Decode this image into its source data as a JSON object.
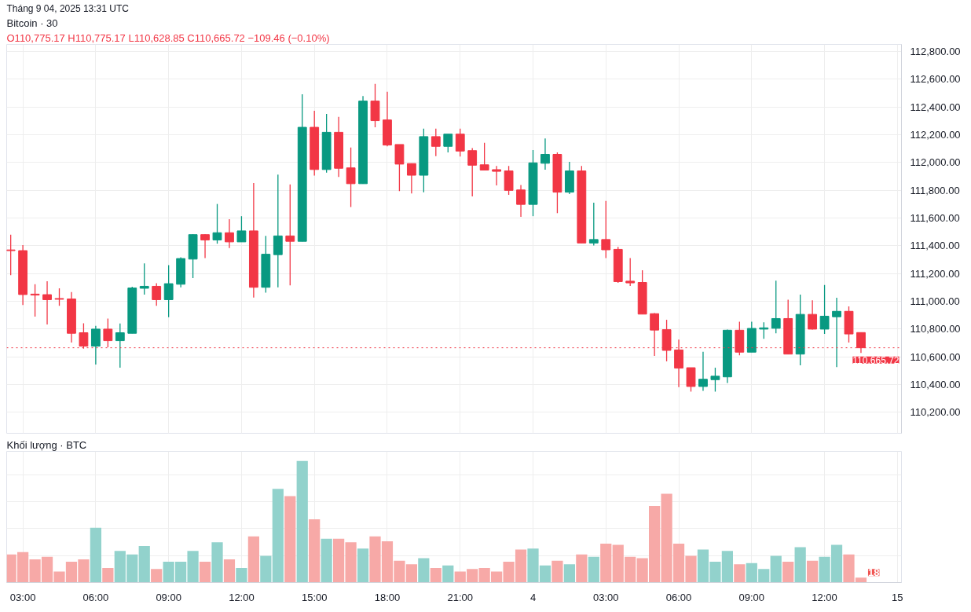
{
  "chart_data": [
    {
      "type": "candlestick",
      "title": "Bitcoin · 30",
      "subtitle": "O110,775.17 H110,775.17 L110,628.85 C110,665.72 −109.46 (−0.10%)",
      "annotations": [
        "Tháng 9 04, 2025 13:31 UTC"
      ],
      "x": [
        "2025-09-03T02:30",
        "2025-09-03T03:00",
        "2025-09-03T03:30",
        "2025-09-03T04:00",
        "2025-09-03T04:30",
        "2025-09-03T05:00",
        "2025-09-03T05:30",
        "2025-09-03T06:00",
        "2025-09-03T06:30",
        "2025-09-03T07:00",
        "2025-09-03T07:30",
        "2025-09-03T08:00",
        "2025-09-03T08:30",
        "2025-09-03T09:00",
        "2025-09-03T09:30",
        "2025-09-03T10:00",
        "2025-09-03T10:30",
        "2025-09-03T11:00",
        "2025-09-03T11:30",
        "2025-09-03T12:00",
        "2025-09-03T12:30",
        "2025-09-03T13:00",
        "2025-09-03T13:30",
        "2025-09-03T14:00",
        "2025-09-03T14:30",
        "2025-09-03T15:00",
        "2025-09-03T15:30",
        "2025-09-03T16:00",
        "2025-09-03T16:30",
        "2025-09-03T17:00",
        "2025-09-03T17:30",
        "2025-09-03T18:00",
        "2025-09-03T18:30",
        "2025-09-03T19:00",
        "2025-09-03T19:30",
        "2025-09-03T20:00",
        "2025-09-03T20:30",
        "2025-09-03T21:00",
        "2025-09-03T21:30",
        "2025-09-03T22:00",
        "2025-09-03T22:30",
        "2025-09-03T23:00",
        "2025-09-03T23:30",
        "2025-09-04T00:00",
        "2025-09-04T00:30",
        "2025-09-04T01:00",
        "2025-09-04T01:30",
        "2025-09-04T02:00",
        "2025-09-04T02:30",
        "2025-09-04T03:00",
        "2025-09-04T03:30",
        "2025-09-04T04:00",
        "2025-09-04T04:30",
        "2025-09-04T05:00",
        "2025-09-04T05:30",
        "2025-09-04T06:00",
        "2025-09-04T06:30",
        "2025-09-04T07:00",
        "2025-09-04T07:30",
        "2025-09-04T08:00",
        "2025-09-04T08:30",
        "2025-09-04T09:00",
        "2025-09-04T09:30",
        "2025-09-04T10:00",
        "2025-09-04T10:30",
        "2025-09-04T11:00",
        "2025-09-04T11:30",
        "2025-09-04T12:00",
        "2025-09-04T12:30",
        "2025-09-04T13:00",
        "2025-09-04T13:30"
      ],
      "ohlc": [
        [
          111370,
          111480,
          111189,
          111365
        ],
        [
          111365,
          111405,
          110973,
          111049
        ],
        [
          111052,
          111123,
          110890,
          111045
        ],
        [
          111048,
          111145,
          110833,
          111012
        ],
        [
          111020,
          111094,
          110968,
          111015
        ],
        [
          111017,
          111067,
          110703,
          110770
        ],
        [
          110774,
          110842,
          110659,
          110677
        ],
        [
          110677,
          110824,
          110545,
          110800
        ],
        [
          110800,
          110876,
          110670,
          110717
        ],
        [
          110717,
          110840,
          110522,
          110774
        ],
        [
          110770,
          111105,
          110770,
          111096
        ],
        [
          111094,
          111273,
          111049,
          111108
        ],
        [
          111108,
          111131,
          110968,
          111012
        ],
        [
          111012,
          111260,
          110886,
          111127
        ],
        [
          111123,
          111317,
          111101,
          111308
        ],
        [
          111304,
          111483,
          111167,
          111480
        ],
        [
          111480,
          111483,
          111312,
          111442
        ],
        [
          111442,
          111701,
          111415,
          111494
        ],
        [
          111494,
          111591,
          111383,
          111428
        ],
        [
          111428,
          111613,
          111428,
          111507
        ],
        [
          111507,
          111851,
          111027,
          111101
        ],
        [
          111101,
          111471,
          111062,
          111339
        ],
        [
          111336,
          111913,
          111101,
          111471
        ],
        [
          111471,
          111842,
          111115,
          111432
        ],
        [
          111432,
          112491,
          111432,
          112253
        ],
        [
          112253,
          112372,
          111905,
          111949
        ],
        [
          111949,
          112350,
          111927,
          112217
        ],
        [
          112217,
          112328,
          111895,
          111958
        ],
        [
          111961,
          112107,
          111679,
          111847
        ],
        [
          111847,
          112478,
          111847,
          112442
        ],
        [
          112442,
          112566,
          112253,
          112301
        ],
        [
          112306,
          112509,
          112116,
          112125
        ],
        [
          112129,
          112129,
          111794,
          111988
        ],
        [
          111992,
          111992,
          111776,
          111908
        ],
        [
          111908,
          112244,
          111785,
          112186
        ],
        [
          112186,
          112244,
          112045,
          112116
        ],
        [
          112116,
          112204,
          112072,
          112204
        ],
        [
          112204,
          112244,
          112042,
          112082
        ],
        [
          112085,
          112103,
          111755,
          111980
        ],
        [
          111983,
          112142,
          111945,
          111945
        ],
        [
          111948,
          111975,
          111835,
          111936
        ],
        [
          111939,
          111975,
          111767,
          111799
        ],
        [
          111802,
          111838,
          111608,
          111698
        ],
        [
          111698,
          112089,
          111613,
          111997
        ],
        [
          111994,
          112173,
          111948,
          112058
        ],
        [
          112058,
          112072,
          111635,
          111786
        ],
        [
          111786,
          112005,
          111773,
          111939
        ],
        [
          111939,
          111975,
          111420,
          111420
        ],
        [
          111420,
          111710,
          111402,
          111445
        ],
        [
          111445,
          111723,
          111312,
          111371
        ],
        [
          111374,
          111392,
          111133,
          111142
        ],
        [
          111145,
          111312,
          111111,
          111133
        ],
        [
          111136,
          111224,
          110908,
          110908
        ],
        [
          110911,
          110915,
          110607,
          110793
        ],
        [
          110796,
          110867,
          110568,
          110647
        ],
        [
          110650,
          110725,
          110383,
          110519
        ],
        [
          110522,
          110522,
          110350,
          110387
        ],
        [
          110387,
          110637,
          110355,
          110439
        ],
        [
          110436,
          110522,
          110350,
          110461
        ],
        [
          110456,
          110796,
          110412,
          110792
        ],
        [
          110792,
          110853,
          110611,
          110634
        ],
        [
          110634,
          110853,
          110634,
          110805
        ],
        [
          110800,
          110849,
          110730,
          110809
        ],
        [
          110806,
          111149,
          110770,
          110876
        ],
        [
          110876,
          111012,
          110620,
          110620
        ],
        [
          110620,
          111048,
          110540,
          110906
        ],
        [
          110906,
          111008,
          110796,
          110800
        ],
        [
          110800,
          111118,
          110765,
          110893
        ],
        [
          110889,
          111026,
          110527,
          110928
        ],
        [
          110928,
          110964,
          110703,
          110765
        ],
        [
          110775.17,
          110775.17,
          110628.85,
          110665.72
        ]
      ],
      "colors": [
        "#f23645",
        "#f23645",
        "#f23645",
        "#f23645",
        "#f23645",
        "#f23645",
        "#f23645",
        "#089981",
        "#f23645",
        "#089981",
        "#089981",
        "#089981",
        "#f23645",
        "#089981",
        "#089981",
        "#089981",
        "#f23645",
        "#089981",
        "#f23645",
        "#089981",
        "#f23645",
        "#089981",
        "#089981",
        "#f23645",
        "#089981",
        "#f23645",
        "#089981",
        "#f23645",
        "#f23645",
        "#089981",
        "#f23645",
        "#f23645",
        "#f23645",
        "#f23645",
        "#089981",
        "#f23645",
        "#089981",
        "#f23645",
        "#f23645",
        "#f23645",
        "#f23645",
        "#f23645",
        "#f23645",
        "#089981",
        "#089981",
        "#f23645",
        "#089981",
        "#f23645",
        "#089981",
        "#f23645",
        "#f23645",
        "#f23645",
        "#f23645",
        "#f23645",
        "#f23645",
        "#f23645",
        "#f23645",
        "#089981",
        "#089981",
        "#089981",
        "#f23645",
        "#089981",
        "#089981",
        "#089981",
        "#f23645",
        "#089981",
        "#f23645",
        "#089981",
        "#089981",
        "#f23645",
        "#f23645"
      ],
      "xlim": [
        "2025-09-03T02:20",
        "2025-09-04T15:10"
      ],
      "ylim": [
        110050,
        112850
      ],
      "xticks": [
        {
          "value": "2025-09-03T03:00",
          "label": null
        },
        {
          "value": "2025-09-03T06:00",
          "label": null
        },
        {
          "value": "2025-09-03T09:00",
          "label": null
        },
        {
          "value": "2025-09-03T12:00",
          "label": null
        },
        {
          "value": "2025-09-03T15:00",
          "label": null
        },
        {
          "value": "2025-09-03T18:00",
          "label": null
        },
        {
          "value": "2025-09-03T21:00",
          "label": null
        },
        {
          "value": "2025-09-04T00:00",
          "label": null
        },
        {
          "value": "2025-09-04T03:00",
          "label": null
        },
        {
          "value": "2025-09-04T06:00",
          "label": null
        },
        {
          "value": "2025-09-04T09:00",
          "label": null
        },
        {
          "value": "2025-09-04T12:00",
          "label": null
        },
        {
          "value": "2025-09-04T15:00",
          "label": null
        }
      ],
      "yticks": [
        {
          "value": 110200,
          "label": "110,200.00"
        },
        {
          "value": 110400,
          "label": "110,400.00"
        },
        {
          "value": 110600,
          "label": "110,600.00"
        },
        {
          "value": 110800,
          "label": "110,800.00"
        },
        {
          "value": 111000,
          "label": "111,000.00"
        },
        {
          "value": 111200,
          "label": "111,200.00"
        },
        {
          "value": 111400,
          "label": "111,400.00"
        },
        {
          "value": 111600,
          "label": "111,600.00"
        },
        {
          "value": 111800,
          "label": "111,800.00"
        },
        {
          "value": 112000,
          "label": "112,000.00"
        },
        {
          "value": 112200,
          "label": "112,200.00"
        },
        {
          "value": 112400,
          "label": "112,400.00"
        },
        {
          "value": 112600,
          "label": "112,600.00"
        },
        {
          "value": 112800,
          "label": "112,800.00"
        }
      ],
      "ref_lines": [
        {
          "axis": "y",
          "value": 110665.72,
          "label": "110,665.72",
          "color": "#f23645",
          "line_style": "dotted"
        }
      ],
      "grid": true,
      "tick_labels": "y"
    },
    {
      "type": "bar",
      "subtitle": "Khối lượng · BTC",
      "x": [
        "2025-09-03T02:30",
        "2025-09-03T03:00",
        "2025-09-03T03:30",
        "2025-09-03T04:00",
        "2025-09-03T04:30",
        "2025-09-03T05:00",
        "2025-09-03T05:30",
        "2025-09-03T06:00",
        "2025-09-03T06:30",
        "2025-09-03T07:00",
        "2025-09-03T07:30",
        "2025-09-03T08:00",
        "2025-09-03T08:30",
        "2025-09-03T09:00",
        "2025-09-03T09:30",
        "2025-09-03T10:00",
        "2025-09-03T10:30",
        "2025-09-03T11:00",
        "2025-09-03T11:30",
        "2025-09-03T12:00",
        "2025-09-03T12:30",
        "2025-09-03T13:00",
        "2025-09-03T13:30",
        "2025-09-03T14:00",
        "2025-09-03T14:30",
        "2025-09-03T15:00",
        "2025-09-03T15:30",
        "2025-09-03T16:00",
        "2025-09-03T16:30",
        "2025-09-03T17:00",
        "2025-09-03T17:30",
        "2025-09-03T18:00",
        "2025-09-03T18:30",
        "2025-09-03T19:00",
        "2025-09-03T19:30",
        "2025-09-03T20:00",
        "2025-09-03T20:30",
        "2025-09-03T21:00",
        "2025-09-03T21:30",
        "2025-09-03T22:00",
        "2025-09-03T22:30",
        "2025-09-03T23:00",
        "2025-09-03T23:30",
        "2025-09-04T00:00",
        "2025-09-04T00:30",
        "2025-09-04T01:00",
        "2025-09-04T01:30",
        "2025-09-04T02:00",
        "2025-09-04T02:30",
        "2025-09-04T03:00",
        "2025-09-04T03:30",
        "2025-09-04T04:00",
        "2025-09-04T04:30",
        "2025-09-04T05:00",
        "2025-09-04T05:30",
        "2025-09-04T06:00",
        "2025-09-04T06:30",
        "2025-09-04T07:00",
        "2025-09-04T07:30",
        "2025-09-04T08:00",
        "2025-09-04T08:30",
        "2025-09-04T09:00",
        "2025-09-04T09:30",
        "2025-09-04T10:00",
        "2025-09-04T10:30",
        "2025-09-04T11:00",
        "2025-09-04T11:30",
        "2025-09-04T12:00",
        "2025-09-04T12:30",
        "2025-09-04T13:00",
        "2025-09-04T13:30"
      ],
      "values": [
        104,
        113,
        86,
        95,
        41,
        77,
        86,
        203,
        54,
        117,
        104,
        135,
        50,
        77,
        77,
        117,
        77,
        149,
        86,
        54,
        171,
        99,
        347,
        320,
        450,
        234,
        162,
        162,
        149,
        126,
        171,
        153,
        81,
        68,
        90,
        54,
        63,
        41,
        50,
        54,
        41,
        77,
        122,
        126,
        63,
        81,
        68,
        104,
        95,
        144,
        140,
        95,
        90,
        284,
        329,
        144,
        99,
        122,
        77,
        117,
        68,
        72,
        50,
        99,
        77,
        131,
        81,
        95,
        140,
        104,
        18
      ],
      "colors": [
        "#f7a9a7",
        "#f7a9a7",
        "#f7a9a7",
        "#f7a9a7",
        "#f7a9a7",
        "#f7a9a7",
        "#f7a9a7",
        "#92d2cc",
        "#f7a9a7",
        "#92d2cc",
        "#92d2cc",
        "#92d2cc",
        "#f7a9a7",
        "#92d2cc",
        "#92d2cc",
        "#92d2cc",
        "#f7a9a7",
        "#92d2cc",
        "#f7a9a7",
        "#92d2cc",
        "#f7a9a7",
        "#92d2cc",
        "#92d2cc",
        "#f7a9a7",
        "#92d2cc",
        "#f7a9a7",
        "#92d2cc",
        "#f7a9a7",
        "#f7a9a7",
        "#92d2cc",
        "#f7a9a7",
        "#f7a9a7",
        "#f7a9a7",
        "#f7a9a7",
        "#92d2cc",
        "#f7a9a7",
        "#92d2cc",
        "#f7a9a7",
        "#f7a9a7",
        "#f7a9a7",
        "#f7a9a7",
        "#f7a9a7",
        "#f7a9a7",
        "#92d2cc",
        "#92d2cc",
        "#f7a9a7",
        "#92d2cc",
        "#f7a9a7",
        "#92d2cc",
        "#f7a9a7",
        "#f7a9a7",
        "#f7a9a7",
        "#f7a9a7",
        "#f7a9a7",
        "#f7a9a7",
        "#f7a9a7",
        "#f7a9a7",
        "#92d2cc",
        "#92d2cc",
        "#92d2cc",
        "#f7a9a7",
        "#92d2cc",
        "#92d2cc",
        "#92d2cc",
        "#f7a9a7",
        "#92d2cc",
        "#f7a9a7",
        "#92d2cc",
        "#92d2cc",
        "#f7a9a7",
        "#f7a9a7"
      ],
      "value_labels": [
        null,
        null,
        null,
        null,
        null,
        null,
        null,
        null,
        null,
        null,
        null,
        null,
        null,
        null,
        null,
        null,
        null,
        null,
        null,
        null,
        null,
        null,
        null,
        null,
        null,
        null,
        null,
        null,
        null,
        null,
        null,
        null,
        null,
        null,
        null,
        null,
        null,
        null,
        null,
        null,
        null,
        null,
        null,
        null,
        null,
        null,
        null,
        null,
        null,
        null,
        null,
        null,
        null,
        null,
        null,
        null,
        null,
        null,
        null,
        null,
        null,
        null,
        null,
        null,
        null,
        null,
        null,
        null,
        null,
        null,
        "18"
      ],
      "xlim": [
        "2025-09-03T02:20",
        "2025-09-04T15:10"
      ],
      "xticks": [
        {
          "value": "2025-09-03T03:00",
          "label": "03:00"
        },
        {
          "value": "2025-09-03T06:00",
          "label": "06:00"
        },
        {
          "value": "2025-09-03T09:00",
          "label": "09:00"
        },
        {
          "value": "2025-09-03T12:00",
          "label": "12:00"
        },
        {
          "value": "2025-09-03T15:00",
          "label": "15:00"
        },
        {
          "value": "2025-09-03T18:00",
          "label": "18:00"
        },
        {
          "value": "2025-09-03T21:00",
          "label": "21:00"
        },
        {
          "value": "2025-09-04T00:00",
          "label": "4"
        },
        {
          "value": "2025-09-04T03:00",
          "label": "03:00"
        },
        {
          "value": "2025-09-04T06:00",
          "label": "06:00"
        },
        {
          "value": "2025-09-04T09:00",
          "label": "09:00"
        },
        {
          "value": "2025-09-04T12:00",
          "label": "12:00"
        },
        {
          "value": "2025-09-04T15:00",
          "label": "15"
        }
      ],
      "grid": true,
      "tick_labels": "x"
    }
  ]
}
